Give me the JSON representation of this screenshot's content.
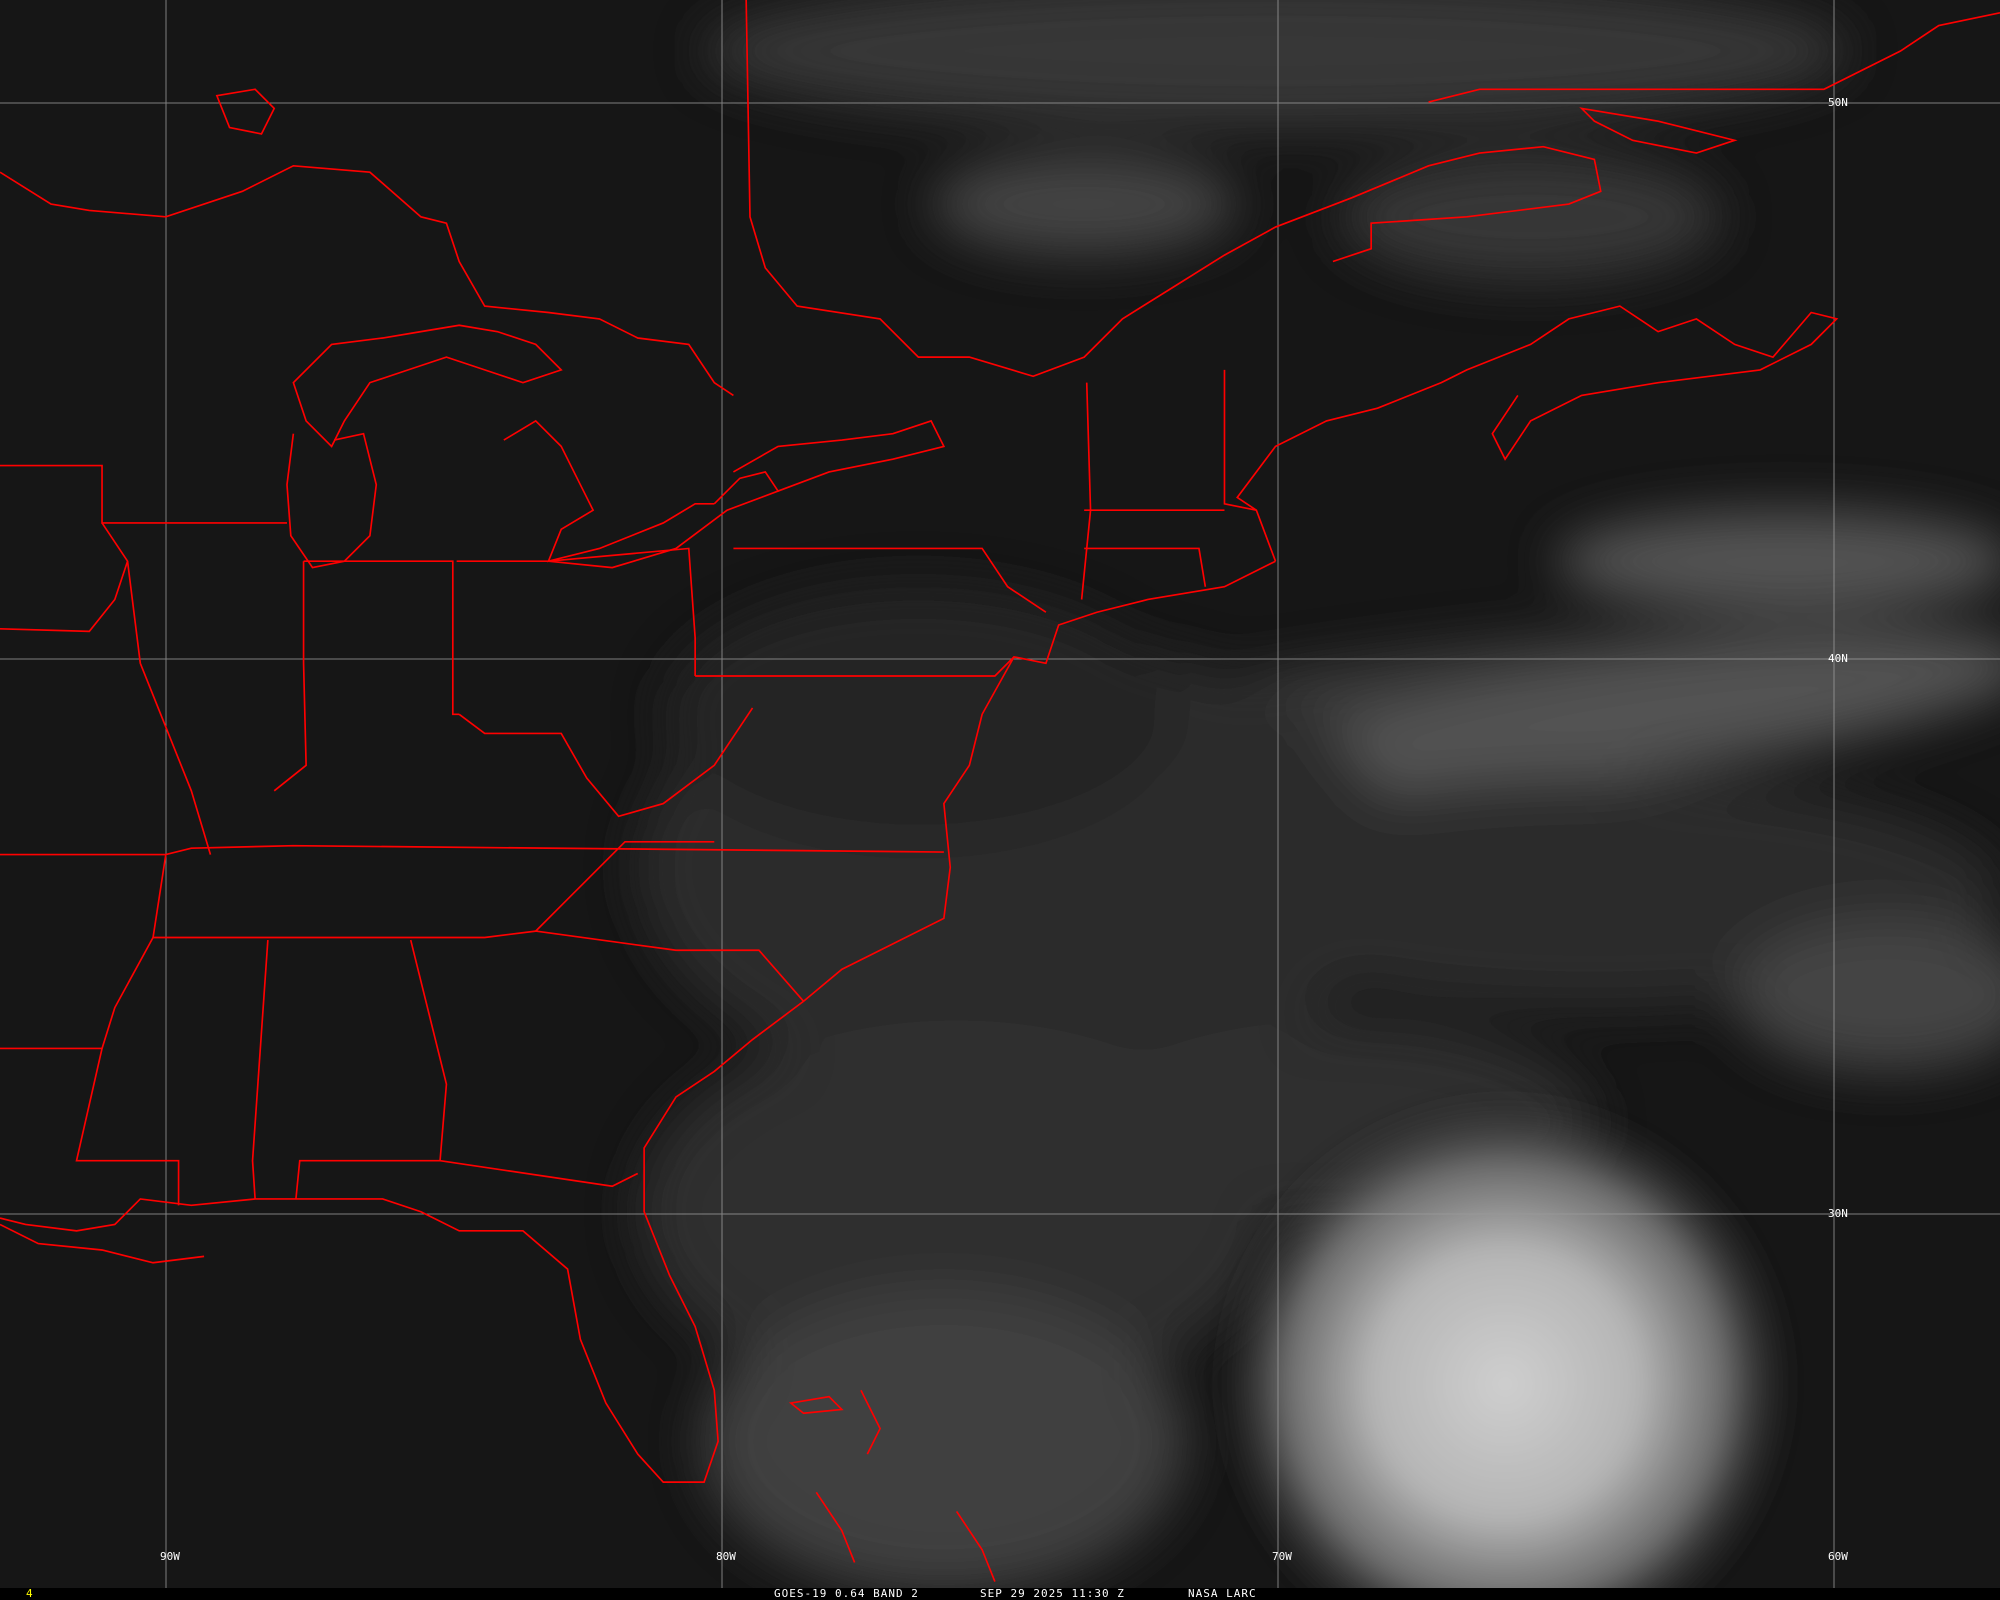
{
  "image": {
    "satellite": "GOES-19",
    "band_text": "GOES-19 0.64 BAND 2",
    "datetime_text": "SEP 29 2025 11:30 Z",
    "credit_text": "NASA LARC",
    "frame_number": "4"
  },
  "grid": {
    "longitude_labels": [
      "90W",
      "80W",
      "70W",
      "60W"
    ],
    "latitude_labels": [
      "50N",
      "40N",
      "30N"
    ]
  },
  "colors": {
    "background": "#161616",
    "boundaries": "#ff0000",
    "grid": "#9a9a9a",
    "frame_number": "#ffff00",
    "text": "#ffffff"
  }
}
